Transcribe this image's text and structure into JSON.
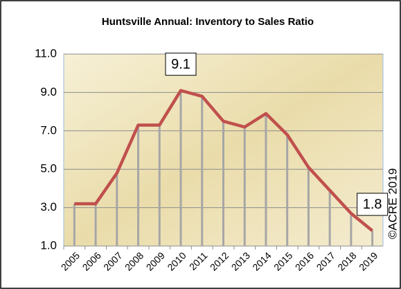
{
  "chart_data": {
    "type": "line",
    "title": "Huntsville Annual: Inventory to Sales Ratio",
    "categories": [
      "2005",
      "2006",
      "2007",
      "2008",
      "2009",
      "2010",
      "2011",
      "2012",
      "2013",
      "2014",
      "2015",
      "2016",
      "2017",
      "2018",
      "2019"
    ],
    "series": [
      {
        "name": "Inventory to Sales Ratio",
        "color": "#c0504d",
        "values": [
          3.2,
          3.2,
          4.8,
          7.3,
          7.3,
          9.1,
          8.8,
          7.5,
          7.2,
          7.9,
          6.8,
          5.1,
          3.9,
          2.7,
          1.8
        ],
        "value_labels": [
          null,
          null,
          null,
          null,
          null,
          "9.1",
          null,
          null,
          null,
          null,
          null,
          null,
          null,
          null,
          "1.8"
        ]
      }
    ],
    "ylim": [
      1,
      11
    ],
    "yticks": [
      {
        "value": 1,
        "label": "1.0"
      },
      {
        "value": 3,
        "label": "3.0"
      },
      {
        "value": 5,
        "label": "5.0"
      },
      {
        "value": 7,
        "label": "7.0"
      },
      {
        "value": 9,
        "label": "9.0"
      },
      {
        "value": 11,
        "label": "11.0"
      }
    ],
    "grid": true,
    "drop_lines": true,
    "annotation": "©ACRE 2019"
  }
}
